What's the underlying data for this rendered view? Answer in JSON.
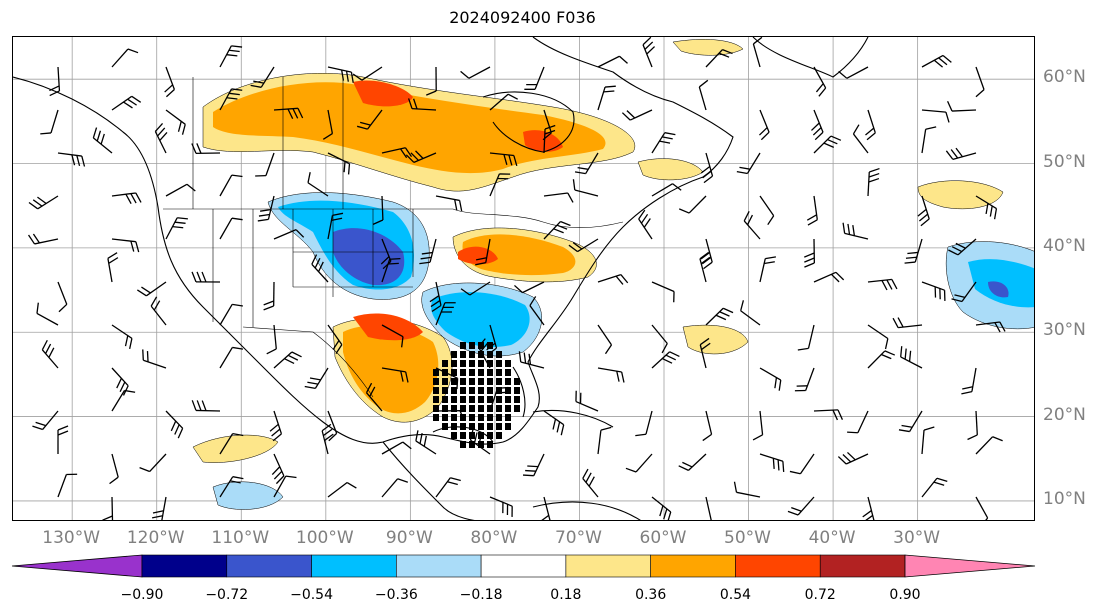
{
  "title": "2024092400 F036",
  "lat_labels": [
    "60°N",
    "50°N",
    "40°N",
    "30°N",
    "20°N",
    "10°N"
  ],
  "lon_labels": [
    "130°W",
    "120°W",
    "110°W",
    "100°W",
    "90°W",
    "80°W",
    "70°W",
    "60°W",
    "50°W",
    "40°W",
    "30°W"
  ],
  "colorbar": {
    "ticks": [
      "−0.90",
      "−0.72",
      "−0.54",
      "−0.36",
      "−0.18",
      "0.18",
      "0.36",
      "0.54",
      "0.72",
      "0.90"
    ],
    "colors": [
      "#9932cc",
      "#00008b",
      "#3a55cc",
      "#00bfff",
      "#aadcf8",
      "#ffffff",
      "#fde68a",
      "#ffa500",
      "#ff4500",
      "#b22222",
      "#ff85b3"
    ]
  },
  "map": {
    "extent_lon": [
      -137,
      -16
    ],
    "extent_lat": [
      7.5,
      65
    ],
    "land_color": "#ffffff",
    "coast_color": "#000000",
    "grid_color": "#a0a0a0"
  }
}
